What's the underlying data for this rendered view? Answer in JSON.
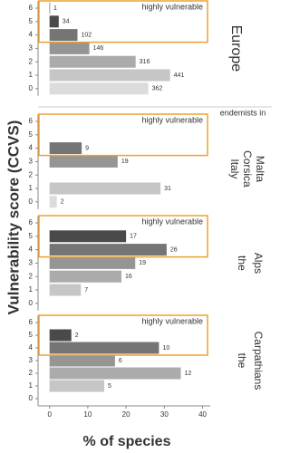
{
  "chart_data": [
    {
      "type": "bar",
      "orientation": "horizontal",
      "categories": [
        "0",
        "1",
        "2",
        "3",
        "4",
        "5",
        "6"
      ],
      "values": [
        25.8,
        31.5,
        22.5,
        10.4,
        7.3,
        2.4,
        0.07
      ],
      "counts": [
        362,
        441,
        316,
        146,
        102,
        34,
        1
      ],
      "annotation": "highly vulnerable",
      "strip": [
        "Europe"
      ]
    },
    {
      "type": "bar",
      "orientation": "horizontal",
      "categories": [
        "0",
        "1",
        "2",
        "3",
        "4",
        "5",
        "6"
      ],
      "values": [
        1.9,
        29,
        null,
        17.8,
        8.4,
        null,
        null
      ],
      "counts": [
        2,
        31,
        null,
        19,
        9,
        null,
        null
      ],
      "annotation": "highly vulnerable",
      "strip_title": "endemists in",
      "strip": [
        "Italy",
        "Corsica",
        "Malta"
      ]
    },
    {
      "type": "bar",
      "orientation": "horizontal",
      "categories": [
        "0",
        "1",
        "2",
        "3",
        "4",
        "5",
        "6"
      ],
      "values": [
        null,
        8.2,
        18.8,
        22.4,
        30.6,
        20,
        null
      ],
      "counts": [
        null,
        7,
        16,
        19,
        26,
        17,
        null
      ],
      "annotation": "highly vulnerable",
      "strip": [
        "the",
        "Alps"
      ]
    },
    {
      "type": "bar",
      "orientation": "horizontal",
      "categories": [
        "0",
        "1",
        "2",
        "3",
        "4",
        "5",
        "6"
      ],
      "values": [
        null,
        14.3,
        34.3,
        17.1,
        28.6,
        5.7,
        null
      ],
      "counts": [
        null,
        5,
        12,
        6,
        10,
        2,
        null
      ],
      "annotation": "highly vulnerable",
      "strip": [
        "the",
        "Carpathians"
      ]
    }
  ],
  "shared": {
    "xlabel": "% of species",
    "ylabel": "Vulnerability score (CCVS)",
    "xlim": [
      -3,
      42
    ],
    "xticks": [
      0,
      10,
      20,
      30,
      40
    ],
    "colors": [
      "#dcdcdc",
      "#c6c6c6",
      "#ababab",
      "#959595",
      "#757575",
      "#4a4a4a",
      "#3a3a3a"
    ],
    "highlight_color": "#f0a030"
  }
}
